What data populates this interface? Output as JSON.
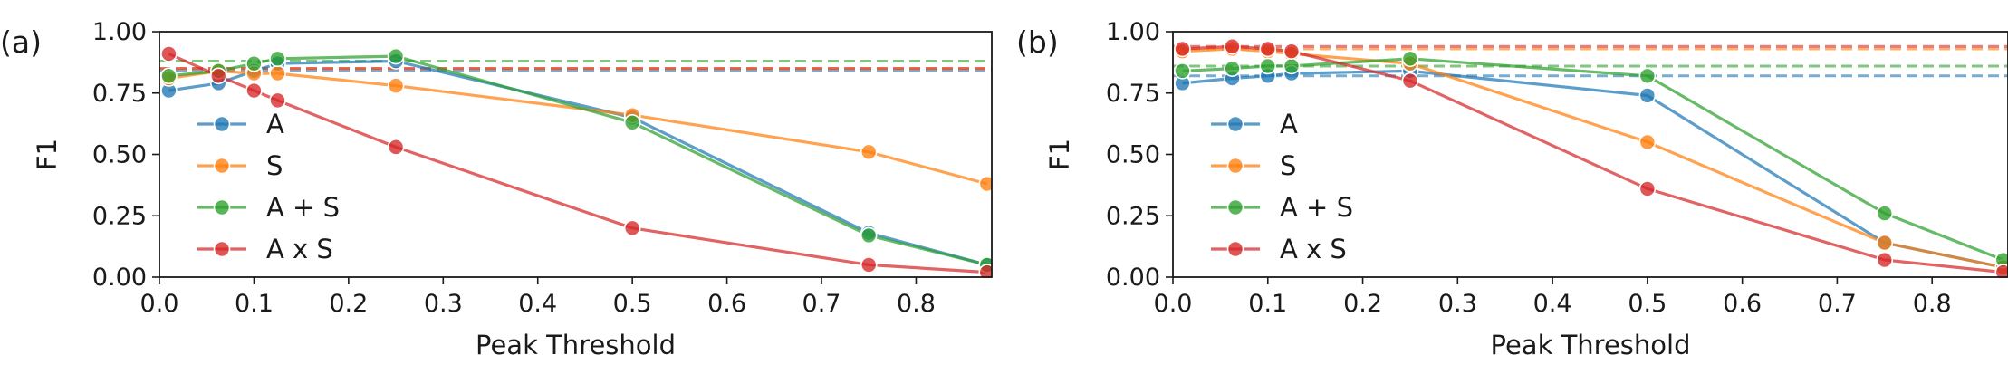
{
  "chart_data": [
    {
      "type": "line",
      "panel_label": "(a)",
      "xlabel": "Peak Threshold",
      "ylabel": "F1",
      "xlim": [
        0.0,
        0.88
      ],
      "ylim": [
        0.0,
        1.0
      ],
      "x_ticks": [
        "0.0",
        "0.1",
        "0.2",
        "0.3",
        "0.4",
        "0.5",
        "0.6",
        "0.7",
        "0.8"
      ],
      "y_ticks": [
        "0.00",
        "0.25",
        "0.50",
        "0.75",
        "1.00"
      ],
      "legend_position": "center-left",
      "x": [
        0.01,
        0.0625,
        0.1,
        0.125,
        0.25,
        0.5,
        0.75,
        0.875
      ],
      "series": [
        {
          "name": "A",
          "color": "#1f77b4",
          "values": [
            0.76,
            0.79,
            0.84,
            0.87,
            0.88,
            0.65,
            0.18,
            0.05
          ],
          "baseline": 0.84
        },
        {
          "name": "S",
          "color": "#ff7f0e",
          "values": [
            0.81,
            0.84,
            0.83,
            0.83,
            0.78,
            0.66,
            0.51,
            0.38
          ],
          "baseline": 0.85
        },
        {
          "name": "A + S",
          "color": "#2ca02c",
          "values": [
            0.82,
            0.84,
            0.87,
            0.89,
            0.9,
            0.63,
            0.17,
            0.05
          ],
          "baseline": 0.88
        },
        {
          "name": "A x S",
          "color": "#d62728",
          "values": [
            0.91,
            0.82,
            0.76,
            0.72,
            0.53,
            0.2,
            0.05,
            0.02
          ],
          "baseline": 0.85
        }
      ]
    },
    {
      "type": "line",
      "panel_label": "(b)",
      "xlabel": "Peak Threshold",
      "ylabel": "F1",
      "xlim": [
        0.0,
        0.88
      ],
      "ylim": [
        0.0,
        1.0
      ],
      "x_ticks": [
        "0.0",
        "0.1",
        "0.2",
        "0.3",
        "0.4",
        "0.5",
        "0.6",
        "0.7",
        "0.8"
      ],
      "y_ticks": [
        "0.00",
        "0.25",
        "0.50",
        "0.75",
        "1.00"
      ],
      "legend_position": "center-left",
      "x": [
        0.01,
        0.0625,
        0.1,
        0.125,
        0.25,
        0.5,
        0.75,
        0.875
      ],
      "series": [
        {
          "name": "A",
          "color": "#1f77b4",
          "values": [
            0.79,
            0.81,
            0.82,
            0.83,
            0.84,
            0.74,
            0.14,
            0.04
          ],
          "baseline": 0.82
        },
        {
          "name": "S",
          "color": "#ff7f0e",
          "values": [
            0.92,
            0.93,
            0.92,
            0.91,
            0.87,
            0.55,
            0.14,
            0.04
          ],
          "baseline": 0.93
        },
        {
          "name": "A + S",
          "color": "#2ca02c",
          "values": [
            0.84,
            0.85,
            0.86,
            0.86,
            0.89,
            0.82,
            0.26,
            0.07
          ],
          "baseline": 0.86
        },
        {
          "name": "A x S",
          "color": "#d62728",
          "values": [
            0.93,
            0.94,
            0.93,
            0.92,
            0.8,
            0.36,
            0.07,
            0.02
          ],
          "baseline": 0.94
        }
      ]
    }
  ]
}
